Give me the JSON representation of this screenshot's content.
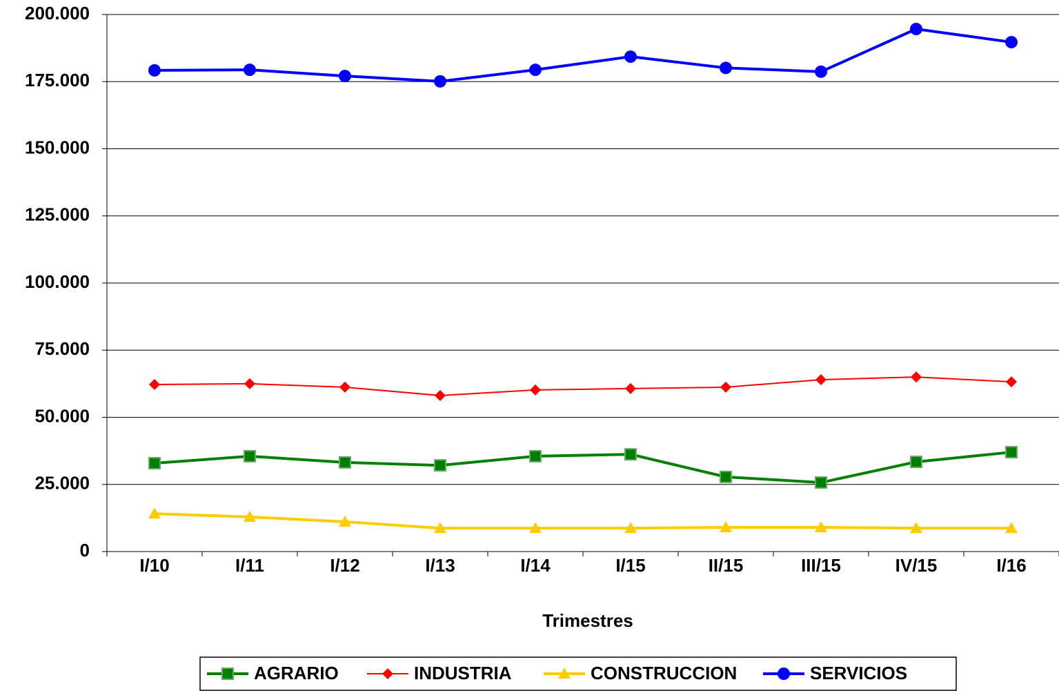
{
  "chart_data": {
    "type": "line",
    "x_label": "Trimestres",
    "categories": [
      "I/10",
      "I/11",
      "I/12",
      "I/13",
      "I/14",
      "I/15",
      "II/15",
      "III/15",
      "IV/15",
      "I/16"
    ],
    "series": [
      {
        "name": "AGRARIO",
        "color": "#008000",
        "marker": "square",
        "values": [
          32900,
          35500,
          33200,
          32100,
          35500,
          36200,
          27800,
          25700,
          33400,
          37000
        ]
      },
      {
        "name": "INDUSTRIA",
        "color": "#ff0000",
        "marker": "diamond",
        "values": [
          62200,
          62500,
          61200,
          58100,
          60200,
          60700,
          61200,
          64000,
          65000,
          63200
        ]
      },
      {
        "name": "CONSTRUCCION",
        "color": "#ffcc00",
        "marker": "triangle",
        "values": [
          14100,
          12900,
          11100,
          8700,
          8700,
          8700,
          9000,
          9000,
          8700,
          8700
        ]
      },
      {
        "name": "SERVICIOS",
        "color": "#0000ff",
        "marker": "circle",
        "values": [
          179200,
          179400,
          177100,
          175100,
          179400,
          184300,
          180100,
          178700,
          194600,
          189700
        ]
      }
    ],
    "ylim": [
      0,
      200000
    ],
    "yticks": [
      0,
      {
        "value": 25000,
        "label": "25.000"
      },
      {
        "value": 50000,
        "label": "50.000"
      },
      {
        "value": 75000,
        "label": "75.000"
      },
      {
        "value": 100000,
        "label": "100.000"
      },
      {
        "value": 125000,
        "label": "125.000"
      },
      {
        "value": 150000,
        "label": "150.000"
      },
      {
        "value": 175000,
        "label": "175.000"
      },
      {
        "value": 200000,
        "label": "200.000"
      }
    ],
    "grid": true,
    "legend": "bottom"
  }
}
